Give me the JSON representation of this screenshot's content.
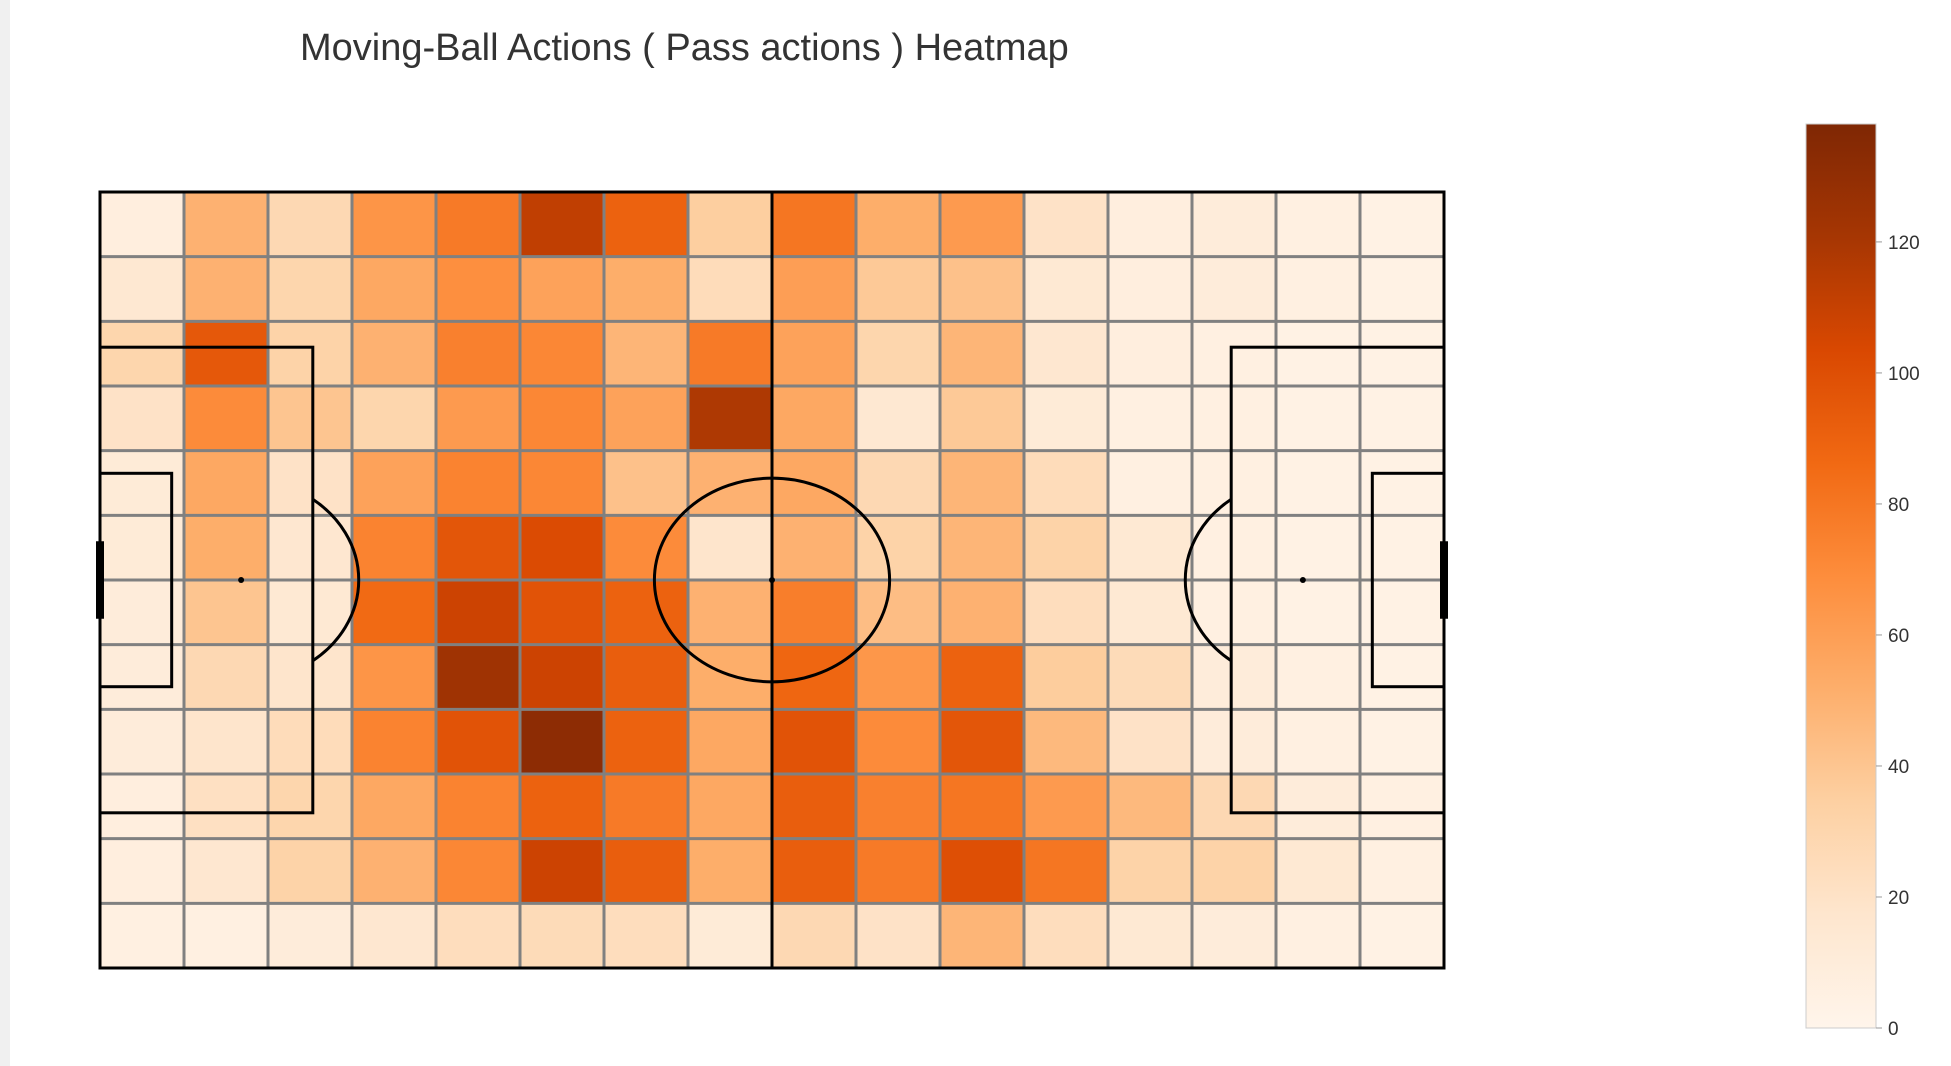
{
  "chart_data": {
    "type": "heatmap",
    "title": "Moving-Ball Actions ( Pass actions ) Heatmap",
    "xlabel": "",
    "ylabel": "",
    "grid": true,
    "background": "football-pitch",
    "colorscale": "Oranges",
    "colorscale_stops": [
      "#fff5eb",
      "#fee6ce",
      "#fdd0a2",
      "#fdae6b",
      "#fd8d3c",
      "#f16913",
      "#d94801",
      "#a63603",
      "#7f2704"
    ],
    "zlim": [
      0,
      138
    ],
    "colorbar": {
      "ticks": [
        0,
        20,
        40,
        60,
        80,
        100,
        120
      ],
      "tick_labels": [
        "0",
        "20",
        "40",
        "60",
        "80",
        "100",
        "120"
      ]
    },
    "n_cols": 16,
    "n_rows": 12,
    "z": [
      [
        8,
        50,
        28,
        65,
        78,
        112,
        90,
        35,
        80,
        52,
        62,
        20,
        8,
        10,
        6,
        4
      ],
      [
        15,
        50,
        30,
        55,
        68,
        58,
        52,
        25,
        60,
        38,
        42,
        14,
        8,
        10,
        6,
        4
      ],
      [
        30,
        95,
        32,
        50,
        75,
        72,
        48,
        78,
        58,
        30,
        48,
        16,
        8,
        6,
        4,
        4
      ],
      [
        20,
        70,
        40,
        30,
        62,
        72,
        58,
        118,
        55,
        15,
        38,
        12,
        6,
        6,
        4,
        4
      ],
      [
        12,
        55,
        20,
        58,
        74,
        72,
        42,
        50,
        55,
        28,
        48,
        25,
        6,
        6,
        4,
        4
      ],
      [
        12,
        52,
        16,
        74,
        96,
        102,
        70,
        18,
        50,
        32,
        48,
        32,
        14,
        6,
        4,
        4
      ],
      [
        10,
        40,
        14,
        86,
        108,
        98,
        90,
        50,
        76,
        44,
        50,
        24,
        14,
        6,
        4,
        4
      ],
      [
        10,
        28,
        18,
        65,
        124,
        108,
        92,
        52,
        88,
        64,
        90,
        36,
        26,
        10,
        6,
        4
      ],
      [
        10,
        18,
        25,
        74,
        98,
        132,
        90,
        55,
        98,
        70,
        96,
        46,
        20,
        10,
        6,
        4
      ],
      [
        8,
        22,
        30,
        55,
        74,
        90,
        78,
        55,
        92,
        75,
        80,
        62,
        46,
        28,
        10,
        6
      ],
      [
        8,
        16,
        32,
        50,
        72,
        108,
        92,
        52,
        92,
        78,
        100,
        80,
        32,
        32,
        14,
        6
      ],
      [
        6,
        6,
        10,
        16,
        24,
        26,
        24,
        12,
        28,
        20,
        48,
        24,
        14,
        10,
        6,
        4
      ]
    ]
  }
}
